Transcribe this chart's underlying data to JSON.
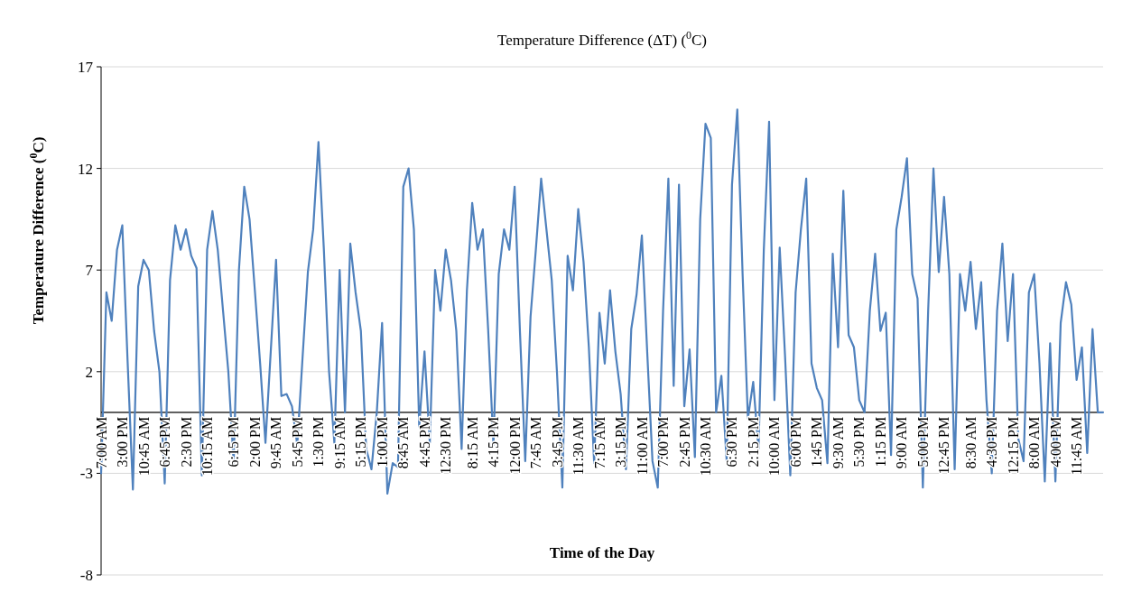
{
  "chart_data": {
    "type": "line",
    "title": "Temperature Difference (ΔT) ($^{0}$C)",
    "xlabel": "Time of the Day",
    "ylabel": "Temperature Difference ($^{0}$C)",
    "ylim": [
      -8,
      17
    ],
    "yticks": [
      -8,
      -3,
      2,
      7,
      12,
      17
    ],
    "grid": "y",
    "categories": [
      "7:00 AM",
      null,
      null,
      null,
      "3:00 PM",
      null,
      null,
      null,
      "10:45 AM",
      null,
      null,
      null,
      "6:45 PM",
      null,
      null,
      null,
      "2:30 PM",
      null,
      null,
      null,
      "10:15 AM",
      null,
      null,
      null,
      null,
      "6:15 PM",
      null,
      null,
      null,
      "2:00 PM",
      null,
      null,
      null,
      "9:45 AM",
      null,
      null,
      null,
      "5:45 PM",
      null,
      null,
      null,
      "1:30 PM",
      null,
      null,
      null,
      "9:15 AM",
      null,
      null,
      null,
      "5:15 PM",
      null,
      null,
      null,
      "1:00 PM",
      null,
      null,
      null,
      "8:45 AM",
      null,
      null,
      null,
      "4:45 PM",
      null,
      null,
      null,
      "12:30 PM",
      null,
      null,
      null,
      null,
      "8:15 AM",
      null,
      null,
      null,
      "4:15 PM",
      null,
      null,
      null,
      "12:00 PM",
      null,
      null,
      null,
      "7:45 AM",
      null,
      null,
      null,
      "3:45 PM",
      null,
      null,
      null,
      "11:30 AM",
      null,
      null,
      null,
      "7:15 AM",
      null,
      null,
      null,
      "3:15 PM",
      null,
      null,
      null,
      "11:00 AM",
      null,
      null,
      null,
      "7:00 PM",
      null,
      null,
      null,
      "2:45 PM",
      null,
      null,
      null,
      "10:30 AM",
      null,
      null,
      null,
      null,
      "6:30 PM",
      null,
      null,
      null,
      "2:15 PM",
      null,
      null,
      null,
      "10:00 AM",
      null,
      null,
      null,
      "6:00 PM",
      null,
      null,
      null,
      "1:45 PM",
      null,
      null,
      null,
      "9:30 AM",
      null,
      null,
      null,
      "5:30 PM",
      null,
      null,
      null,
      "1:15 PM",
      null,
      null,
      null,
      "9:00 AM",
      null,
      null,
      null,
      "5:00 PM",
      null,
      null,
      null,
      "12:45 PM",
      null,
      null,
      null,
      null,
      "8:30 AM",
      null,
      null,
      null,
      "4:30 PM",
      null,
      null,
      null,
      "12:15 PM",
      null,
      null,
      null,
      "8:00 AM",
      null,
      null,
      null,
      "4:00 PM",
      null,
      null,
      null,
      "11:45 AM",
      null,
      null,
      null,
      null,
      null
    ],
    "series": [
      {
        "color": "#4f81bd",
        "values": [
          -3,
          5.9,
          4.5,
          8,
          9.2,
          2.5,
          -3.8,
          6.2,
          7.5,
          7,
          4,
          2,
          -3.5,
          6.5,
          9.2,
          8,
          9,
          7.7,
          7.1,
          -3.1,
          8,
          9.9,
          8,
          5,
          2,
          -2.5,
          7,
          11.1,
          9.5,
          6,
          2.4,
          -1.5,
          3,
          7.5,
          0.8,
          0.9,
          0.3,
          -1.6,
          2.7,
          6.9,
          9,
          13.3,
          8.1,
          2,
          -1.5,
          7,
          0,
          8.3,
          5.9,
          4,
          -1.8,
          -2.8,
          0,
          4.4,
          -4,
          -2.5,
          -2.7,
          11.1,
          12,
          9,
          -0.7,
          3,
          -1.5,
          7,
          5,
          8,
          6.5,
          4,
          -1.8,
          6,
          10.3,
          8,
          9,
          4.1,
          -1.6,
          6.8,
          9,
          8,
          11.1,
          4,
          -2.4,
          4.7,
          8,
          11.5,
          9,
          6.5,
          1.9,
          -3.7,
          7.7,
          6,
          10,
          7.4,
          3.2,
          -2.5,
          4.9,
          2.4,
          6,
          3,
          0.9,
          -2.8,
          4.1,
          5.8,
          8.7,
          3,
          -2.4,
          -3.7,
          5,
          11.5,
          1.3,
          11.2,
          0.3,
          3.1,
          -2.2,
          9.5,
          14.2,
          13.5,
          0,
          1.8,
          -2.4,
          11.2,
          14.9,
          6.8,
          -0.3,
          1.5,
          -1.8,
          8,
          14.3,
          0.6,
          8.1,
          2.8,
          -3.1,
          5.9,
          9,
          11.5,
          2.4,
          1.2,
          0.6,
          -2.5,
          7.8,
          3.2,
          10.9,
          3.8,
          3.2,
          0.6,
          0,
          5,
          7.8,
          4,
          4.9,
          -2.1,
          9,
          10.6,
          12.5,
          6.8,
          5.6,
          -3.7,
          5,
          12,
          6.9,
          10.6,
          6.8,
          -2.8,
          6.8,
          5,
          7.4,
          4.1,
          6.4,
          0.6,
          -3,
          5,
          8.3,
          3.5,
          6.8,
          -1.3,
          -2.4,
          5.9,
          6.8,
          2.4,
          -3.4,
          3.4,
          -3.4,
          4.4,
          6.4,
          5.3,
          1.6,
          3.2,
          -2,
          4.1,
          0,
          0
        ]
      }
    ]
  }
}
